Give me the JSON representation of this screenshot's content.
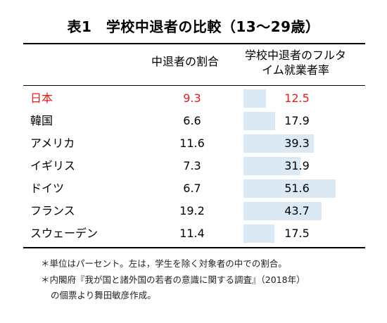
{
  "title": "表1　学校中退者の比較（13〜29歳）",
  "headers": {
    "col1": "中退者の割合",
    "col2_line1": "学校中退者のフルタ",
    "col2_line2": "イム就業者率"
  },
  "rows": [
    {
      "country": "日本",
      "dropout_rate": "9.3",
      "fulltime_rate": "12.5",
      "fulltime_value": 12.5,
      "highlight": true
    },
    {
      "country": "韓国",
      "dropout_rate": "6.6",
      "fulltime_rate": "17.9",
      "fulltime_value": 17.9,
      "highlight": false
    },
    {
      "country": "アメリカ",
      "dropout_rate": "11.6",
      "fulltime_rate": "39.3",
      "fulltime_value": 39.3,
      "highlight": false
    },
    {
      "country": "イギリス",
      "dropout_rate": "7.3",
      "fulltime_rate": "31.9",
      "fulltime_value": 31.9,
      "highlight": false
    },
    {
      "country": "ドイツ",
      "dropout_rate": "6.7",
      "fulltime_rate": "51.6",
      "fulltime_value": 51.6,
      "highlight": false
    },
    {
      "country": "フランス",
      "dropout_rate": "19.2",
      "fulltime_rate": "43.7",
      "fulltime_value": 43.7,
      "highlight": false
    },
    {
      "country": "スウェーデン",
      "dropout_rate": "11.4",
      "fulltime_rate": "17.5",
      "fulltime_value": 17.5,
      "highlight": false
    }
  ],
  "notes": [
    "＊単位はパーセント。左は，学生を除く対象者の中での割合。",
    "＊内閣府『我が国と諸外国の若者の意識に関する調査』（2018年）",
    "の個票より舞田敏彦作成。"
  ],
  "colors": {
    "highlight": "#e21b1b",
    "bar": "#dbe9f4"
  }
}
